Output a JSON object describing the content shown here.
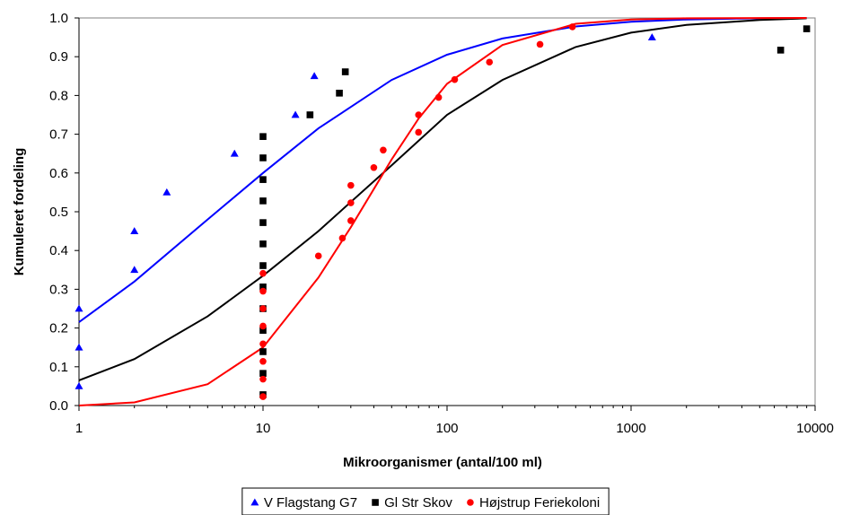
{
  "chart_data": {
    "type": "scatter",
    "xlabel": "Mikroorganismer (antal/100 ml)",
    "ylabel": "Kumuleret fordeling",
    "xscale": "log",
    "xlim": [
      1,
      10000
    ],
    "ylim": [
      0,
      1.0
    ],
    "x_ticks": [
      "1",
      "10",
      "100",
      "1000",
      "10000"
    ],
    "y_ticks": [
      "0.0",
      "0.1",
      "0.2",
      "0.3",
      "0.4",
      "0.5",
      "0.6",
      "0.7",
      "0.8",
      "0.9",
      "1.0"
    ],
    "grid": false,
    "legend_position": "bottom",
    "series": [
      {
        "name": "V Flagstang G7",
        "color": "#0000ff",
        "marker": "triangle",
        "points": [
          [
            1,
            0.05
          ],
          [
            1,
            0.15
          ],
          [
            1,
            0.25
          ],
          [
            2,
            0.35
          ],
          [
            2,
            0.45
          ],
          [
            3,
            0.55
          ],
          [
            7,
            0.65
          ],
          [
            15,
            0.75
          ],
          [
            19,
            0.85
          ],
          [
            1300,
            0.95
          ]
        ],
        "fit_line": [
          [
            1,
            0.215
          ],
          [
            2,
            0.32
          ],
          [
            5,
            0.48
          ],
          [
            10,
            0.6
          ],
          [
            20,
            0.715
          ],
          [
            50,
            0.84
          ],
          [
            100,
            0.905
          ],
          [
            200,
            0.947
          ],
          [
            500,
            0.978
          ],
          [
            1000,
            0.99
          ],
          [
            2000,
            0.996
          ],
          [
            5000,
            0.999
          ],
          [
            9000,
            1.0
          ]
        ]
      },
      {
        "name": "Gl Str Skov",
        "color": "#000000",
        "marker": "square",
        "points": [
          [
            10,
            0.028
          ],
          [
            10,
            0.083
          ],
          [
            10,
            0.139
          ],
          [
            10,
            0.194
          ],
          [
            10,
            0.25
          ],
          [
            10,
            0.306
          ],
          [
            10,
            0.361
          ],
          [
            10,
            0.417
          ],
          [
            10,
            0.472
          ],
          [
            10,
            0.528
          ],
          [
            10,
            0.583
          ],
          [
            10,
            0.639
          ],
          [
            10,
            0.694
          ],
          [
            18,
            0.75
          ],
          [
            26,
            0.806
          ],
          [
            28,
            0.861
          ],
          [
            6500,
            0.917
          ],
          [
            9000,
            0.972
          ]
        ],
        "fit_line": [
          [
            1,
            0.065
          ],
          [
            2,
            0.12
          ],
          [
            5,
            0.23
          ],
          [
            10,
            0.335
          ],
          [
            20,
            0.45
          ],
          [
            50,
            0.62
          ],
          [
            100,
            0.75
          ],
          [
            200,
            0.84
          ],
          [
            500,
            0.925
          ],
          [
            1000,
            0.962
          ],
          [
            2000,
            0.982
          ],
          [
            5000,
            0.995
          ],
          [
            9000,
            0.999
          ]
        ]
      },
      {
        "name": "Højstrup Feriekoloni",
        "color": "#ff0000",
        "marker": "circle",
        "points": [
          [
            10,
            0.023
          ],
          [
            10,
            0.068
          ],
          [
            10,
            0.114
          ],
          [
            10,
            0.159
          ],
          [
            10,
            0.205
          ],
          [
            10,
            0.25
          ],
          [
            10,
            0.295
          ],
          [
            10,
            0.341
          ],
          [
            20,
            0.386
          ],
          [
            27,
            0.432
          ],
          [
            30,
            0.477
          ],
          [
            30,
            0.523
          ],
          [
            30,
            0.568
          ],
          [
            40,
            0.614
          ],
          [
            45,
            0.659
          ],
          [
            70,
            0.705
          ],
          [
            70,
            0.75
          ],
          [
            90,
            0.795
          ],
          [
            110,
            0.841
          ],
          [
            170,
            0.886
          ],
          [
            320,
            0.932
          ],
          [
            480,
            0.977
          ]
        ],
        "fit_line": [
          [
            1,
            0.0
          ],
          [
            2,
            0.008
          ],
          [
            5,
            0.055
          ],
          [
            10,
            0.15
          ],
          [
            20,
            0.33
          ],
          [
            30,
            0.46
          ],
          [
            50,
            0.635
          ],
          [
            70,
            0.74
          ],
          [
            100,
            0.83
          ],
          [
            200,
            0.93
          ],
          [
            500,
            0.985
          ],
          [
            1000,
            0.996
          ],
          [
            2000,
            0.999
          ],
          [
            9000,
            1.0
          ]
        ]
      }
    ]
  }
}
